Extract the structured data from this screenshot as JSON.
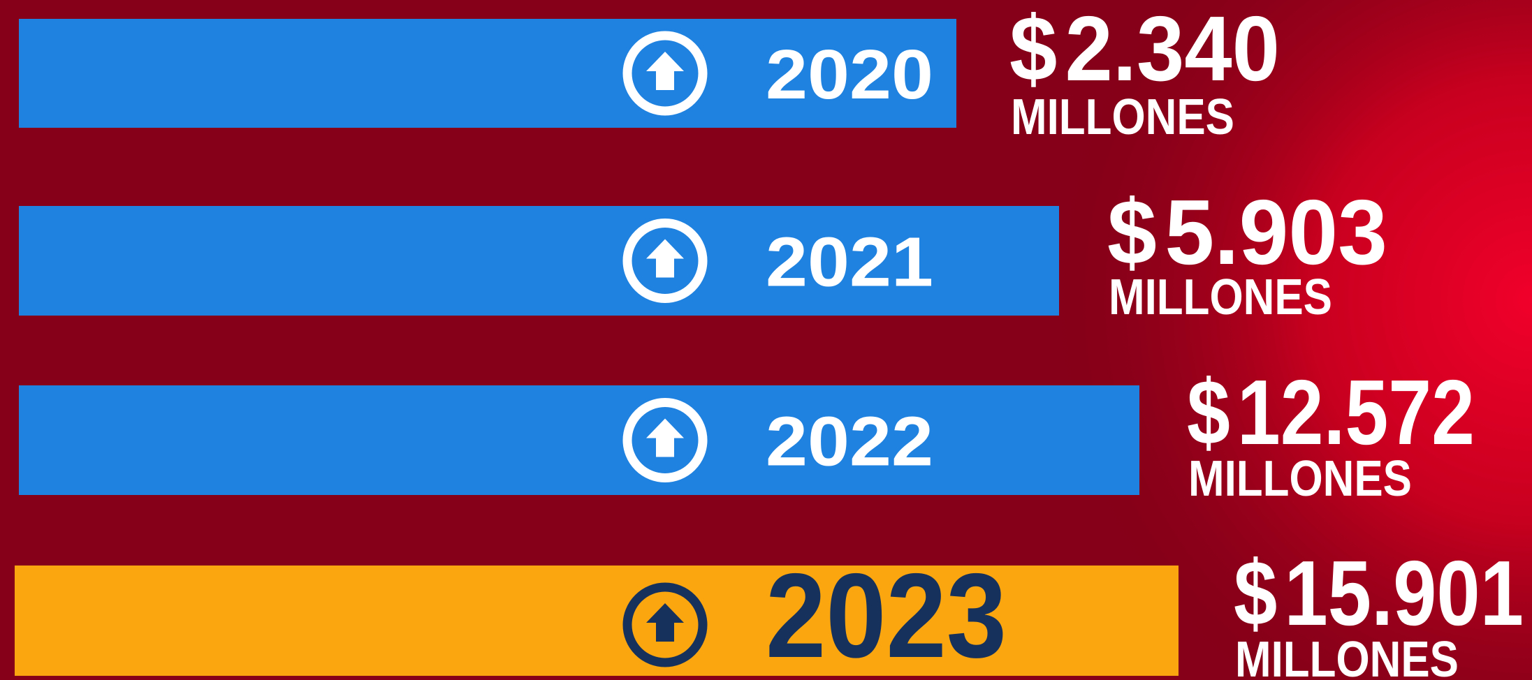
{
  "items": [
    {
      "year": "2020",
      "currency": "$",
      "amount": "2.340",
      "unit": "MILLONES",
      "highlight": false
    },
    {
      "year": "2021",
      "currency": "$",
      "amount": "5.903",
      "unit": "MILLONES",
      "highlight": false
    },
    {
      "year": "2022",
      "currency": "$",
      "amount": "12.572",
      "unit": "MILLONES",
      "highlight": false
    },
    {
      "year": "2023",
      "currency": "$",
      "amount": "15.901",
      "unit": "MILLONES",
      "highlight": true
    }
  ]
}
